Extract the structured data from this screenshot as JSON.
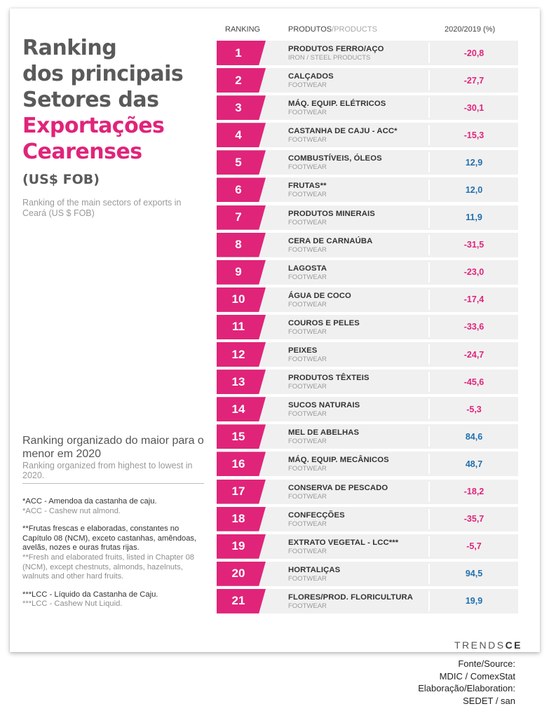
{
  "title": {
    "line1": "Ranking",
    "line2": "dos principais",
    "line3": "Setores das",
    "line4": "Exportações",
    "line5": "Cearenses",
    "currency": "(US$ FOB)",
    "subtitle_en": "Ranking of the main sectors of exports in Ceará (US $ FOB)"
  },
  "headers": {
    "ranking": "RANKING",
    "products_pt": "PRODUTOS",
    "products_sep": "/",
    "products_en": "PRODUCTS",
    "change": "2020/2019 (%)"
  },
  "rows": [
    {
      "rank": "1",
      "name": "PRODUTOS FERRO/AÇO",
      "en": "IRON / STEEL PRODUCTS",
      "value": "-20,8",
      "sign": "neg"
    },
    {
      "rank": "2",
      "name": "CALÇADOS",
      "en": "FOOTWEAR",
      "value": "-27,7",
      "sign": "neg"
    },
    {
      "rank": "3",
      "name": "MÁQ. EQUIP. ELÉTRICOS",
      "en": "FOOTWEAR",
      "value": "-30,1",
      "sign": "neg"
    },
    {
      "rank": "4",
      "name": "CASTANHA DE CAJU - ACC*",
      "en": "FOOTWEAR",
      "value": "-15,3",
      "sign": "neg"
    },
    {
      "rank": "5",
      "name": "COMBUSTÍVEIS, ÓLEOS",
      "en": "FOOTWEAR",
      "value": "12,9",
      "sign": "pos"
    },
    {
      "rank": "6",
      "name": "FRUTAS**",
      "en": "FOOTWEAR",
      "value": "12,0",
      "sign": "pos"
    },
    {
      "rank": "7",
      "name": "PRODUTOS MINERAIS",
      "en": "FOOTWEAR",
      "value": "11,9",
      "sign": "pos"
    },
    {
      "rank": "8",
      "name": "CERA DE CARNAÚBA",
      "en": "FOOTWEAR",
      "value": "-31,5",
      "sign": "neg"
    },
    {
      "rank": "9",
      "name": "LAGOSTA",
      "en": "FOOTWEAR",
      "value": "-23,0",
      "sign": "neg"
    },
    {
      "rank": "10",
      "name": "ÁGUA DE COCO",
      "en": "FOOTWEAR",
      "value": "-17,4",
      "sign": "neg"
    },
    {
      "rank": "11",
      "name": "COUROS E PELES",
      "en": "FOOTWEAR",
      "value": "-33,6",
      "sign": "neg"
    },
    {
      "rank": "12",
      "name": "PEIXES",
      "en": "FOOTWEAR",
      "value": "-24,7",
      "sign": "neg"
    },
    {
      "rank": "13",
      "name": "PRODUTOS TÊXTEIS",
      "en": "FOOTWEAR",
      "value": "-45,6",
      "sign": "neg"
    },
    {
      "rank": "14",
      "name": "SUCOS NATURAIS",
      "en": "FOOTWEAR",
      "value": "-5,3",
      "sign": "neg"
    },
    {
      "rank": "15",
      "name": "MEL DE ABELHAS",
      "en": "FOOTWEAR",
      "value": "84,6",
      "sign": "pos"
    },
    {
      "rank": "16",
      "name": "MÁQ. EQUIP. MECÂNICOS",
      "en": "FOOTWEAR",
      "value": "48,7",
      "sign": "pos"
    },
    {
      "rank": "17",
      "name": "CONSERVA DE PESCADO",
      "en": "FOOTWEAR",
      "value": "-18,2",
      "sign": "neg"
    },
    {
      "rank": "18",
      "name": "CONFECÇÕES",
      "en": "FOOTWEAR",
      "value": "-35,7",
      "sign": "neg"
    },
    {
      "rank": "19",
      "name": "EXTRATO VEGETAL - LCC***",
      "en": "FOOTWEAR",
      "value": "-5,7",
      "sign": "neg"
    },
    {
      "rank": "20",
      "name": "HORTALIÇAS",
      "en": "FOOTWEAR",
      "value": "94,5",
      "sign": "pos"
    },
    {
      "rank": "21",
      "name": "FLORES/PROD. FLORICULTURA",
      "en": "FOOTWEAR",
      "value": "19,9",
      "sign": "pos"
    }
  ],
  "ordering": {
    "pt": "Ranking organizado do maior para o menor em 2020",
    "en": "Ranking organized from highest to lowest in 2020."
  },
  "notes": [
    {
      "pt": "*ACC - Amendoa da castanha de caju.",
      "en": "*ACC - Cashew nut almond."
    },
    {
      "pt": "**Frutas frescas e elaboradas, constantes no Capítulo 08 (NCM), exceto castanhas, amêndoas, avelãs, nozes e ouras frutas rijas.",
      "en": "**Fresh and elaborated fruits, listed in Chapter 08 (NCM), except chestnuts, almonds, hazelnuts, walnuts and other hard fruits."
    },
    {
      "pt": "***LCC - Líquido da Castanha de Caju.",
      "en": "***LCC - Cashew Nut Liquid."
    }
  ],
  "logo": {
    "part1": "TRENDS",
    "part2": "CE"
  },
  "source": {
    "line1": "Fonte/Source:",
    "line2": "MDIC / ComexStat",
    "line3": "Elaboração/Elaboration:",
    "line4": "SEDET / san"
  },
  "colors": {
    "accent": "#e0247a",
    "positive": "#1f6fae",
    "row_bg": "#f0f0f0"
  }
}
